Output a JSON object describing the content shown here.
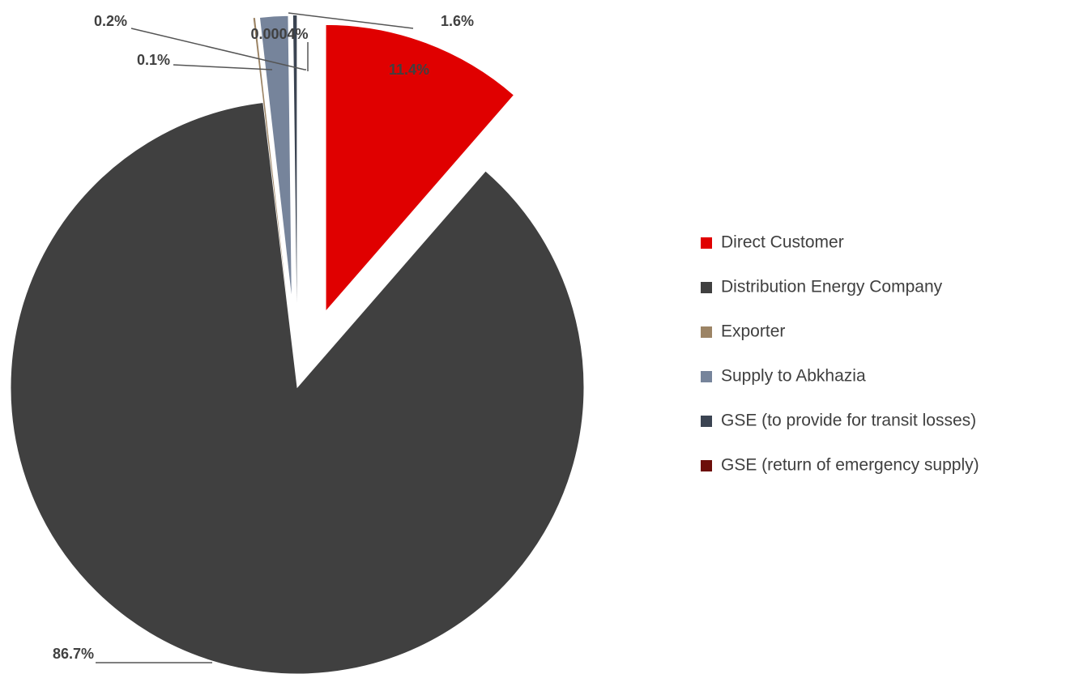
{
  "chart_data": {
    "type": "pie",
    "categories": [
      "Direct Customer",
      "Distribution Energy Company",
      "Exporter",
      "Supply to Abkhazia",
      "GSE (to provide for transit losses)",
      "GSE (return of emergency supply)"
    ],
    "values": [
      11.4,
      86.7,
      0.1,
      1.6,
      0.2,
      0.0004
    ],
    "value_labels": [
      "11.4%",
      "86.7%",
      "0.1%",
      "1.6%",
      "0.2%",
      "0.0004%"
    ],
    "colors": [
      "#e00000",
      "#404040",
      "#9c8465",
      "#76849b",
      "#3b4452",
      "#6d0f0a"
    ],
    "legend": "right"
  }
}
